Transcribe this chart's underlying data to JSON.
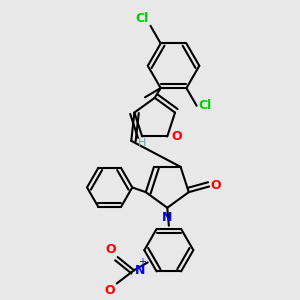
{
  "background_color": "#e8e8e8",
  "bond_color": "#000000",
  "bond_width": 1.5,
  "atom_colors": {
    "Cl": "#00cc00",
    "O": "#ff0000",
    "N": "#0000ff",
    "H": "#70a0a0"
  },
  "font_size": 9,
  "font_size_h": 8
}
